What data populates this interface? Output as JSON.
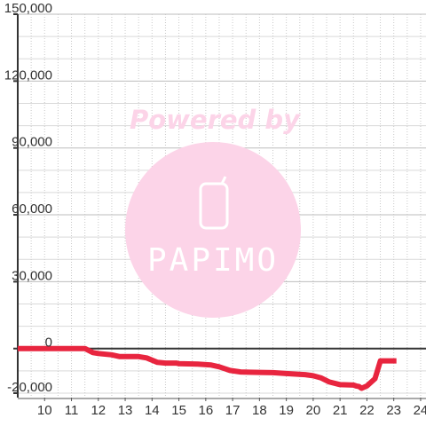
{
  "watermark": {
    "powered_text": "Powered by",
    "brand_text": "PAPIMO",
    "color": "#fcd4e8",
    "icon": "phone-icon"
  },
  "chart_data": {
    "type": "line",
    "title": "",
    "xlabel": "",
    "ylabel": "",
    "xlim": [
      9.0,
      24.2
    ],
    "ylim": [
      -22000,
      150000
    ],
    "x_ticks": [
      10,
      11,
      12,
      13,
      14,
      15,
      16,
      17,
      18,
      19,
      20,
      21,
      22,
      23,
      24
    ],
    "y_ticks": [
      {
        "value": -20000,
        "label": "-20,000"
      },
      {
        "value": 0,
        "label": "0"
      },
      {
        "value": 30000,
        "label": "30,000"
      },
      {
        "value": 60000,
        "label": "60,000"
      },
      {
        "value": 90000,
        "label": "90,000"
      },
      {
        "value": 120000,
        "label": "120,000"
      },
      {
        "value": 150000,
        "label": "150,000"
      }
    ],
    "grid": true,
    "legend": "none",
    "series": [
      {
        "color": "#e8253f",
        "points": [
          [
            9.0,
            0
          ],
          [
            11.5,
            0
          ],
          [
            11.8,
            -1800
          ],
          [
            12.0,
            -2200
          ],
          [
            12.5,
            -2800
          ],
          [
            12.8,
            -3600
          ],
          [
            13.0,
            -3600
          ],
          [
            13.5,
            -3600
          ],
          [
            13.8,
            -4200
          ],
          [
            14.2,
            -6200
          ],
          [
            14.5,
            -6500
          ],
          [
            14.9,
            -6500
          ],
          [
            15.0,
            -6800
          ],
          [
            15.7,
            -7000
          ],
          [
            16.2,
            -7400
          ],
          [
            16.5,
            -8200
          ],
          [
            16.9,
            -9800
          ],
          [
            17.3,
            -10500
          ],
          [
            17.6,
            -10600
          ],
          [
            18.0,
            -10700
          ],
          [
            18.5,
            -10800
          ],
          [
            19.0,
            -11200
          ],
          [
            19.4,
            -11500
          ],
          [
            19.7,
            -11700
          ],
          [
            20.0,
            -12200
          ],
          [
            20.3,
            -13200
          ],
          [
            20.6,
            -15000
          ],
          [
            21.0,
            -16200
          ],
          [
            21.5,
            -16400
          ],
          [
            21.6,
            -16800
          ],
          [
            21.7,
            -17000
          ],
          [
            21.8,
            -17800
          ],
          [
            22.0,
            -16800
          ],
          [
            22.3,
            -13500
          ],
          [
            22.5,
            -5500
          ],
          [
            22.9,
            -5500
          ],
          [
            23.1,
            -5500
          ]
        ]
      }
    ]
  }
}
